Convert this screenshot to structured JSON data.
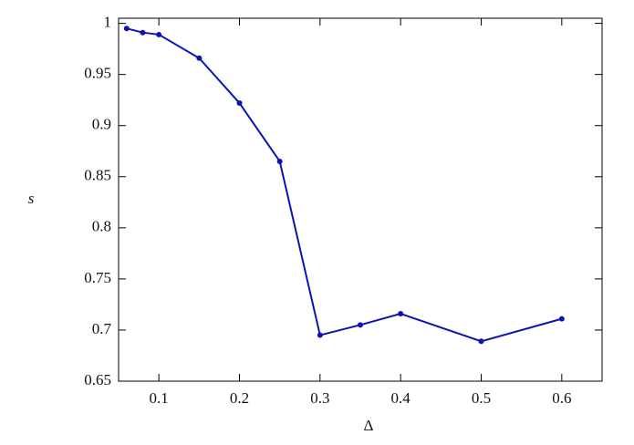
{
  "chart_data": {
    "type": "line",
    "x_label": "Δ",
    "y_label": "s",
    "x": [
      0.06,
      0.08,
      0.1,
      0.15,
      0.2,
      0.25,
      0.3,
      0.35,
      0.4,
      0.5,
      0.6
    ],
    "series": [
      {
        "color": "#0a14b4",
        "values": [
          0.995,
          0.991,
          0.989,
          0.966,
          0.922,
          0.865,
          0.695,
          0.705,
          0.716,
          0.689,
          0.711
        ]
      }
    ],
    "xlim": [
      0.05,
      0.65
    ],
    "ylim": [
      0.65,
      1.005
    ],
    "xticks": [
      0.1,
      0.2,
      0.3,
      0.4,
      0.5,
      0.6
    ],
    "yticks": [
      0.65,
      0.7,
      0.75,
      0.8,
      0.85,
      0.9,
      0.95,
      1
    ],
    "grid": false
  }
}
